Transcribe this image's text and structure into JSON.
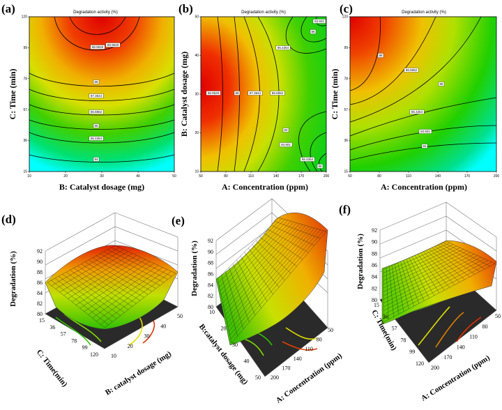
{
  "panels": {
    "a": {
      "label": "(a)"
    },
    "b": {
      "label": "(b)"
    },
    "c": {
      "label": "(c)"
    },
    "d": {
      "label": "(d)"
    },
    "e": {
      "label": "(e)"
    },
    "f": {
      "label": "(f)"
    }
  },
  "chart_data": [
    {
      "id": "a",
      "type": "contour",
      "title": "Degradation activity (%)",
      "xlabel": "B: Catalyst dosage (mg)",
      "ylabel": "C: Time (min)",
      "xlim": [
        10,
        50
      ],
      "ylim": [
        15,
        120
      ],
      "xticks": [
        "10",
        "20",
        "30",
        "40",
        "50"
      ],
      "yticks": [
        "15",
        "36",
        "57",
        "78",
        "99",
        "120"
      ],
      "contour_labels": [
        "88.9529",
        "88.9529",
        "88",
        "87.3544",
        "86.6962",
        "86",
        "85.4354",
        "84"
      ]
    },
    {
      "id": "b",
      "type": "contour",
      "title": "Degradation activity (%)",
      "xlabel": "A: Concentration (ppm)",
      "ylabel": "B: Catalyst dosage (mg)",
      "xlim": [
        50,
        200
      ],
      "ylim": [
        10,
        50
      ],
      "xticks": [
        "50",
        "80",
        "110",
        "140",
        "170",
        "200"
      ],
      "yticks": [
        "10",
        "20",
        "30",
        "40",
        "50"
      ],
      "contour_labels": [
        "88.9529",
        "88",
        "87.3544",
        "86.6962",
        "86",
        "85.4354",
        "84.601",
        "84",
        "84.601",
        "85.4354",
        "86"
      ]
    },
    {
      "id": "c",
      "type": "contour",
      "title": "Degradation activity (%)",
      "xlabel": "A: Concentration (ppm)",
      "ylabel": "C: Time (min)",
      "xlim": [
        50,
        200
      ],
      "ylim": [
        15,
        120
      ],
      "xticks": [
        "50",
        "80",
        "110",
        "140",
        "170",
        "200"
      ],
      "yticks": [
        "15",
        "36",
        "57",
        "78",
        "99",
        "120"
      ],
      "contour_labels": [
        "88",
        "86.6962",
        "86",
        "85.4354",
        "84.601",
        "84"
      ]
    },
    {
      "id": "d",
      "type": "surface",
      "zlabel": "Degradation (%)",
      "xlabel": "C: Time(min)",
      "ylabel": "B: catalyst dosage (mg)",
      "zticks": [
        "80",
        "82",
        "84",
        "86",
        "88",
        "90",
        "92"
      ],
      "xticks": [
        "15",
        "36",
        "57",
        "78",
        "99",
        "120"
      ],
      "yticks": [
        "10",
        "20",
        "30",
        "40",
        "50"
      ]
    },
    {
      "id": "e",
      "type": "surface",
      "zlabel": "Degradation (%)",
      "xlabel": "A: Concentration (ppm)",
      "ylabel": "B:catalyst dosage (mg)",
      "zticks": [
        "80",
        "82",
        "84",
        "86",
        "88",
        "90",
        "92"
      ],
      "xticks": [
        "200",
        "170",
        "140",
        "110",
        "80",
        "50"
      ],
      "yticks": [
        "10",
        "20",
        "30",
        "40",
        "50"
      ]
    },
    {
      "id": "f",
      "type": "surface",
      "zlabel": "Degradation (%)",
      "xlabel": "A: Concentration (ppm)",
      "ylabel": "C: Time(min)",
      "zticks": [
        "80",
        "82",
        "84",
        "86",
        "88",
        "90",
        "92"
      ],
      "xticks": [
        "200",
        "170",
        "140",
        "110",
        "80",
        "50"
      ],
      "yticks": [
        "15",
        "36",
        "57",
        "78",
        "99",
        "120"
      ]
    }
  ]
}
